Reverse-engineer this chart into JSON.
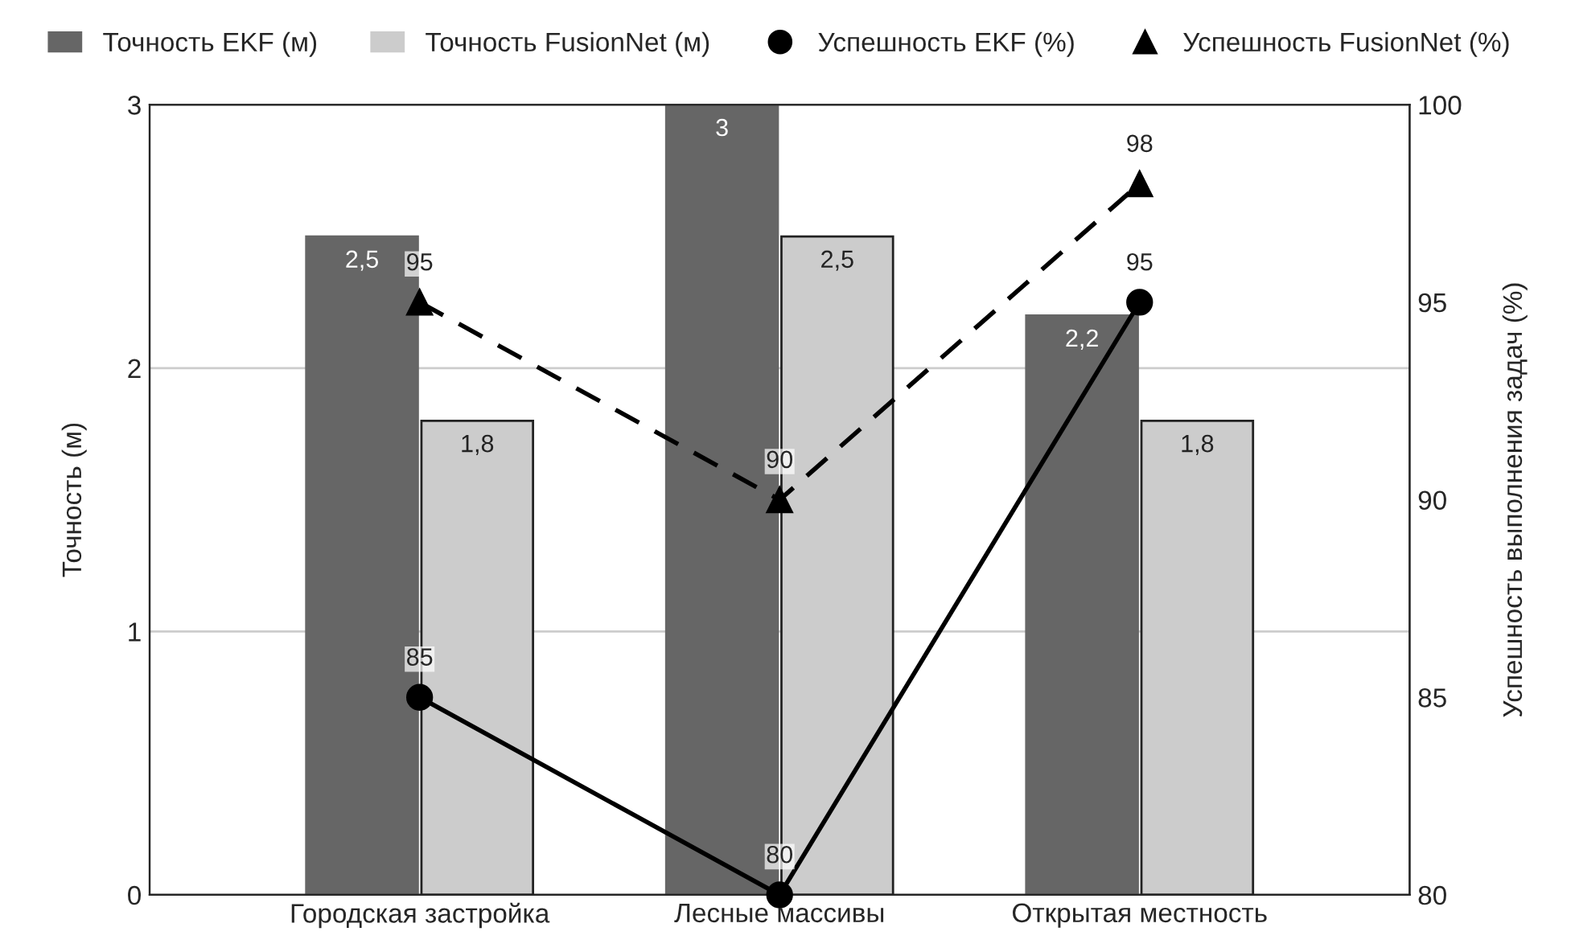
{
  "chart_data": {
    "type": "bar",
    "ylabel": "Точность (м)",
    "y2label": "Успешность выполнения задач (%)",
    "categories": [
      "Городская застройка",
      "Лесные массивы",
      "Открытая местность"
    ],
    "ylim": [
      0,
      3
    ],
    "yticks": [
      0,
      1,
      2,
      3
    ],
    "y2lim": [
      80,
      100
    ],
    "y2ticks": [
      80,
      85,
      90,
      95,
      100
    ],
    "grid": "y",
    "legend": "top",
    "series": [
      {
        "name": "Точность EKF (м)",
        "color": "#666666",
        "values": [
          2.5,
          3,
          2.2
        ],
        "value_labels": [
          "2,5",
          "3",
          "2,2"
        ]
      },
      {
        "name": "Точность FusionNet (м)",
        "color": "#cccccc",
        "values": [
          1.8,
          2.5,
          1.8
        ],
        "value_labels": [
          "1,8",
          "2,5",
          "1,8"
        ]
      },
      {
        "name": "Успешность EKF (%)",
        "type": "line",
        "axis": "y2",
        "color": "#000000",
        "marker": "circle",
        "line_style": "solid",
        "values": [
          85,
          80,
          95
        ],
        "value_labels": [
          "85",
          "80",
          "95"
        ]
      },
      {
        "name": "Успешность FusionNet (%)",
        "type": "line",
        "axis": "y2",
        "color": "#000000",
        "marker": "triangle",
        "line_style": "dashed",
        "values": [
          95,
          90,
          98
        ],
        "value_labels": [
          "95",
          "90",
          "98"
        ]
      }
    ]
  }
}
